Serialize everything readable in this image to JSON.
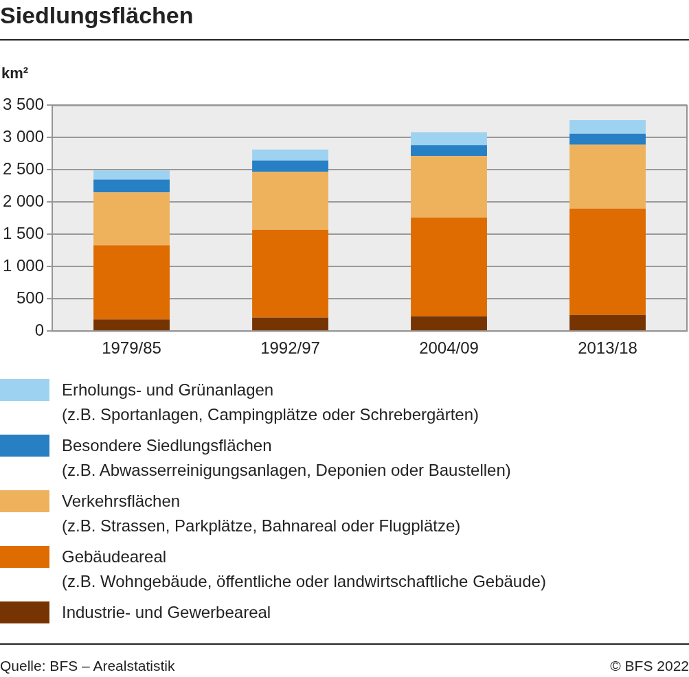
{
  "chart_data": {
    "type": "bar",
    "title": "Siedlungsflächen",
    "ylabel": "km²",
    "stacked": true,
    "grid": "y",
    "legend": "bottom",
    "categories": [
      "1979/85",
      "1992/97",
      "2004/09",
      "2013/18"
    ],
    "series": [
      {
        "name": "Industrie- und Gewerbeareal",
        "color": "#773403",
        "values": [
          180,
          210,
          230,
          250
        ]
      },
      {
        "name": "Gebäudeareal\n(z.B. Wohngebäude, öffentliche oder landwirtschaftliche Gebäude)",
        "color": "#de6c00",
        "values": [
          1150,
          1360,
          1530,
          1650
        ]
      },
      {
        "name": "Verkehrsflächen\n(z.B. Strassen, Parkplätze, Bahnareal oder Flugplätze)",
        "color": "#eeb25d",
        "values": [
          820,
          900,
          955,
          990
        ]
      },
      {
        "name": "Besondere Siedlungsflächen\n(z.B. Abwasserreinigungsanlagen, Deponien oder Baustellen)",
        "color": "#277fc4",
        "values": [
          200,
          175,
          170,
          170
        ]
      },
      {
        "name": "Erholungs- und Grünanlagen\n(z.B. Sportanlagen, Campingplätze oder Schrebergärten)",
        "color": "#9dd3f1",
        "values": [
          140,
          170,
          200,
          210
        ]
      }
    ],
    "ylim": [
      0,
      3500
    ],
    "yticks": [
      0,
      500,
      {
        "value": 1000,
        "label": "1 000"
      },
      {
        "value": 1500,
        "label": "1 500"
      },
      {
        "value": 2000,
        "label": "2 000"
      },
      {
        "value": 2500,
        "label": "2 500"
      },
      {
        "value": 3000,
        "label": "3 000"
      },
      {
        "value": 3500,
        "label": "3 500"
      }
    ],
    "annotations": [
      "Quelle: BFS – Arealstatistik",
      "© BFS 2022"
    ]
  }
}
